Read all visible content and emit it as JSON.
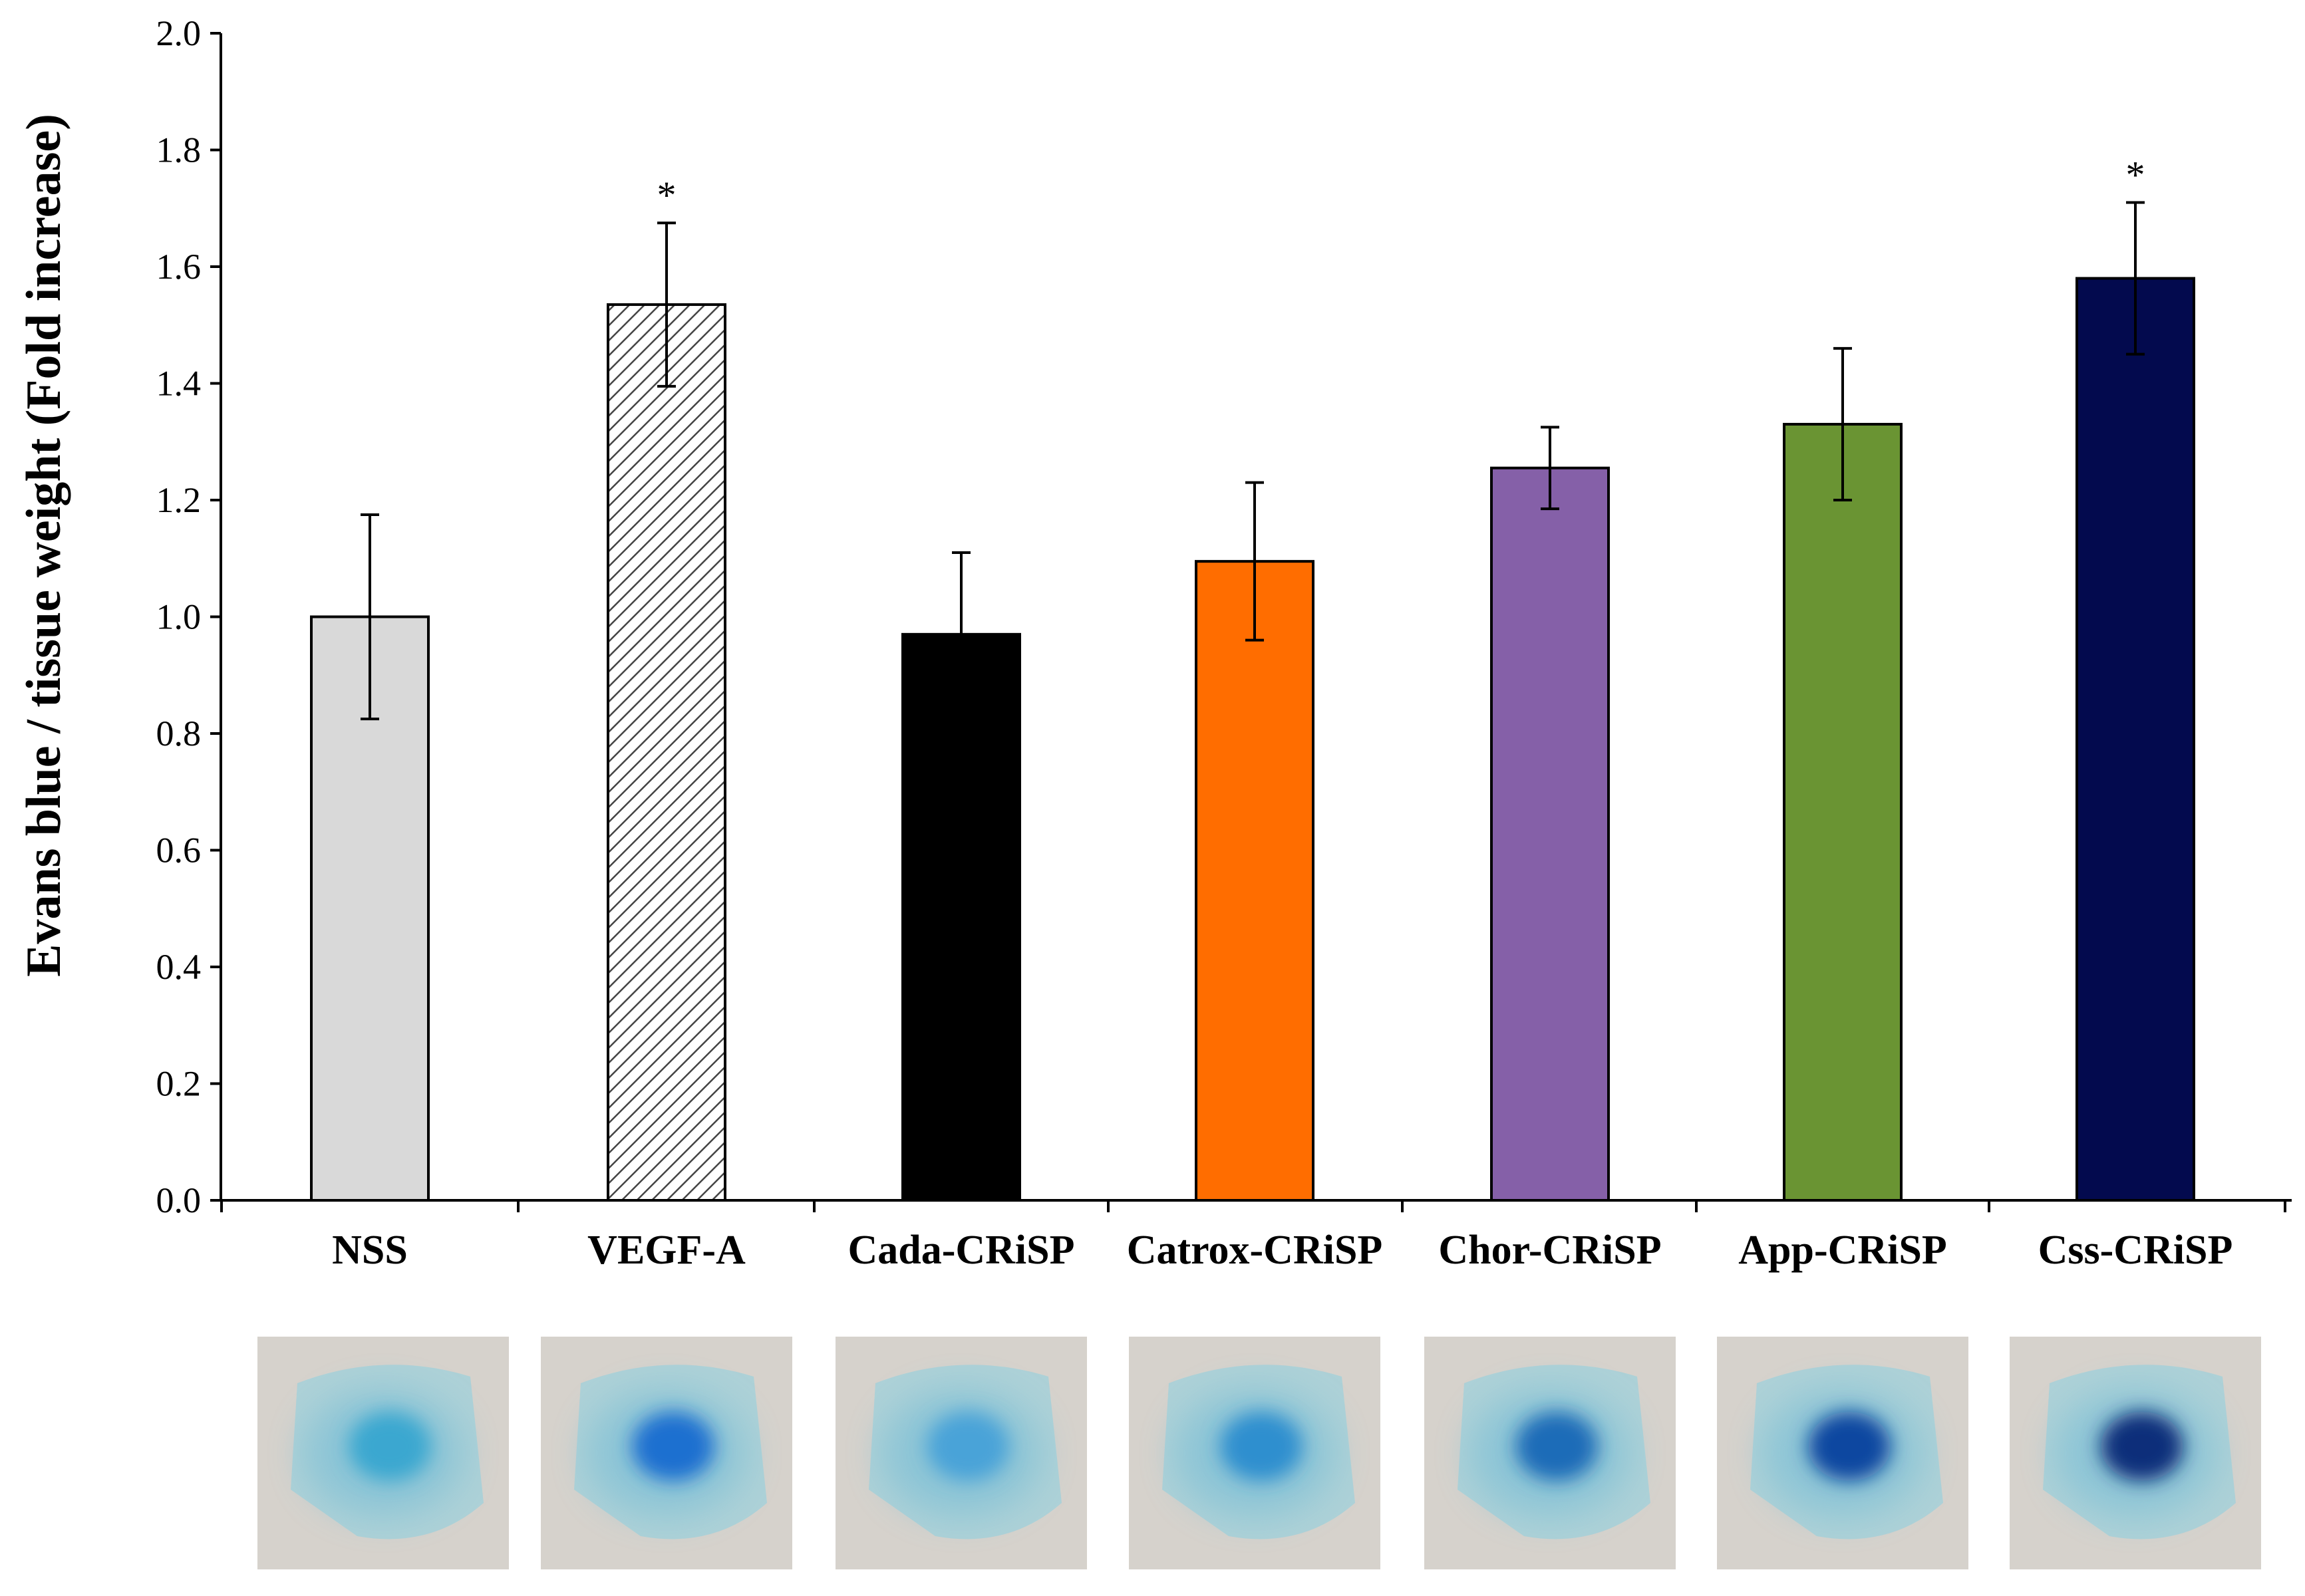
{
  "chart_data": {
    "type": "bar",
    "title": "",
    "xlabel": "",
    "ylabel": "Evans blue / tissue weight (Fold increase)",
    "ylim": [
      0,
      2.0
    ],
    "yticks": [
      "0.0",
      "0.2",
      "0.4",
      "0.6",
      "0.8",
      "1.0",
      "1.2",
      "1.4",
      "1.6",
      "1.8",
      "2.0"
    ],
    "grid": false,
    "categories": [
      "NSS",
      "VEGF-A",
      "Cada-CRiSP",
      "Catrox-CRiSP",
      "Chor-CRiSP",
      "App-CRiSP",
      "Css-CRiSP"
    ],
    "values": [
      1.0,
      1.535,
      0.97,
      1.095,
      1.255,
      1.33,
      1.58
    ],
    "errors": [
      0.175,
      0.14,
      0.14,
      0.135,
      0.07,
      0.13,
      0.13
    ],
    "significance": [
      "",
      "*",
      "",
      "",
      "",
      "",
      "*"
    ],
    "colors": [
      "#d9d9d9",
      "#ffffff",
      "#000000",
      "#ff6d00",
      "#8560a8",
      "#6a9433",
      "#030a4e"
    ],
    "patterns": [
      "",
      "diagonal-hatch",
      "",
      "",
      "",
      "",
      ""
    ],
    "image_tiles": [
      {
        "category": "NSS",
        "description-icon": "skin-sample-photo",
        "stain": "#3aa7d0"
      },
      {
        "category": "VEGF-A",
        "description-icon": "skin-sample-photo",
        "stain": "#1e6fd0"
      },
      {
        "category": "Cada-CRiSP",
        "description-icon": "skin-sample-photo",
        "stain": "#4aa3d8"
      },
      {
        "category": "Catrox-CRiSP",
        "description-icon": "skin-sample-photo",
        "stain": "#2f8fcf"
      },
      {
        "category": "Chor-CRiSP",
        "description-icon": "skin-sample-photo",
        "stain": "#1f6cb8"
      },
      {
        "category": "App-CRiSP",
        "description-icon": "skin-sample-photo",
        "stain": "#0e47a0"
      },
      {
        "category": "Css-CRiSP",
        "description-icon": "skin-sample-photo",
        "stain": "#0a2f7a"
      }
    ]
  }
}
